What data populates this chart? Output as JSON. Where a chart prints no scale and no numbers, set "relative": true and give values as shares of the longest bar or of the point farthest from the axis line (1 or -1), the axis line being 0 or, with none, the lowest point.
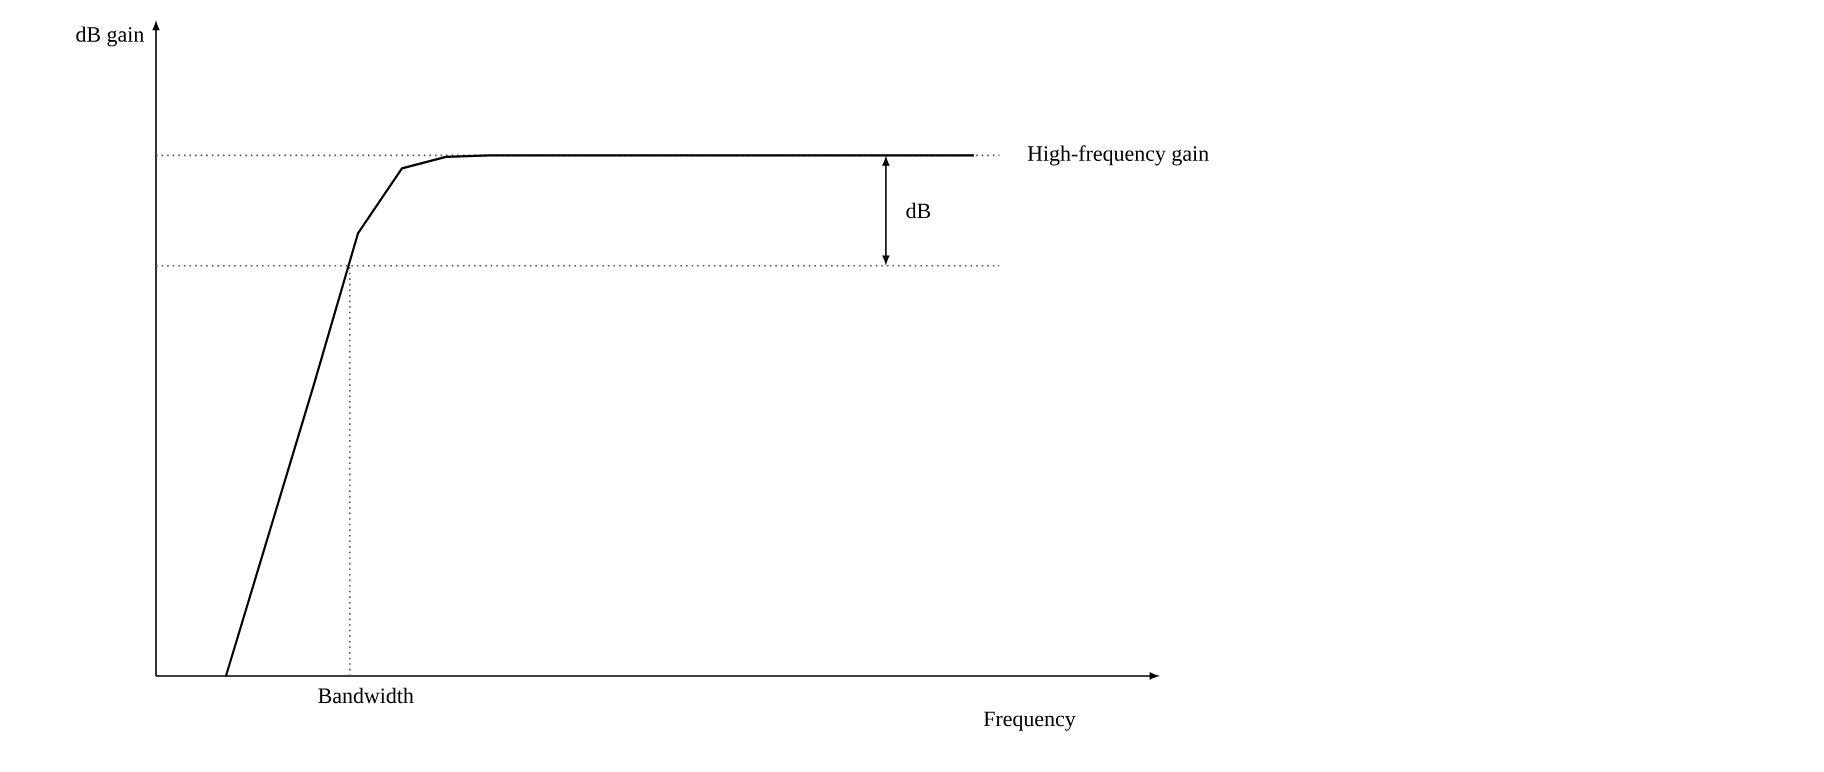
{
  "chart_data": {
    "type": "line",
    "relative": true,
    "xlabel": "Frequency",
    "categories": [
      null,
      null,
      null,
      null,
      null,
      null,
      null,
      null,
      null,
      null,
      null,
      null,
      null,
      null,
      null,
      null,
      null,
      null
    ],
    "values": [
      0,
      0.28,
      0.56,
      0.85,
      0.975,
      0.997,
      1,
      1,
      1,
      1,
      1,
      1,
      1,
      1,
      1,
      1,
      1,
      1
    ],
    "color": "#000000",
    "line_style": "solid",
    "ref_lines": [
      {
        "axis": "y",
        "value": 1,
        "label": "High-frequency gain",
        "line_style": "dotted",
        "color": "#555555"
      },
      {
        "axis": "y",
        "value": 0.788,
        "line_style": "dotted",
        "color": "#555555"
      }
    ],
    "annotations": [
      "dB",
      "Bandwidth",
      "dB gain"
    ]
  }
}
